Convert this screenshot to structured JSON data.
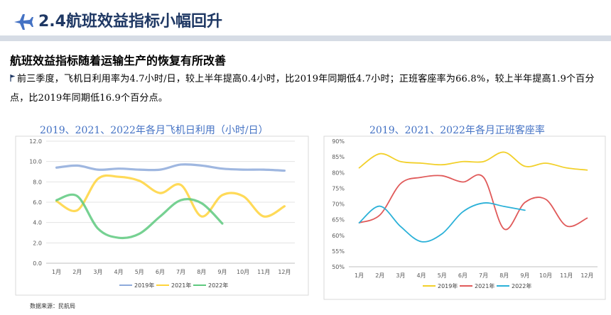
{
  "header": {
    "title": "2.4航班效益指标小幅回升",
    "icon": "airplane-icon"
  },
  "subtitle": "航班效益指标随着运输生产的恢复有所改善",
  "body_text": "前三季度，飞机日利用率为4.7小时/日，较上半年提高0.4小时，比2019年同期低4.7小时；正班客座率为66.8%，较上半年提高1.9个百分点，比2019年同期低16.9个百分点。",
  "source": "数据来源：民航局",
  "colors": {
    "title": "#1f3864",
    "chart_title": "#4472c4",
    "s2019_left": "#8eaadb",
    "s2021_left": "#ffd43b",
    "s2022_left": "#5ec97f",
    "s2019_right": "#f2d02a",
    "s2021_right": "#e05a5a",
    "s2022_right": "#2bb1d8"
  },
  "chart_data": [
    {
      "type": "line",
      "title": "2019、2021、2022年各月飞机日利用（小时/日）",
      "categories": [
        "1月",
        "2月",
        "3月",
        "4月",
        "5月",
        "6月",
        "7月",
        "8月",
        "9月",
        "10月",
        "11月",
        "12月"
      ],
      "ylim": [
        0,
        12
      ],
      "yticks": [
        "0.0",
        "2.0",
        "4.0",
        "6.0",
        "8.0",
        "10.0",
        "12.0"
      ],
      "grid": true,
      "legend": "bottom",
      "series": [
        {
          "name": "2019年",
          "values": [
            9.4,
            9.6,
            9.2,
            9.3,
            9.2,
            9.2,
            9.7,
            9.6,
            9.3,
            9.2,
            9.2,
            9.1
          ]
        },
        {
          "name": "2021年",
          "values": [
            6.1,
            5.2,
            8.3,
            8.5,
            8.1,
            6.9,
            7.7,
            4.6,
            6.7,
            6.6,
            4.6,
            5.6
          ]
        },
        {
          "name": "2022年",
          "values": [
            6.2,
            6.6,
            3.4,
            2.5,
            2.9,
            4.6,
            6.2,
            5.9,
            3.9,
            null,
            null,
            null
          ]
        }
      ]
    },
    {
      "type": "line",
      "title": "2019、2021、2022年各月正班客座率",
      "categories": [
        "1月",
        "2月",
        "3月",
        "4月",
        "5月",
        "6月",
        "7月",
        "8月",
        "9月",
        "10月",
        "11月",
        "12月"
      ],
      "ylim": [
        50,
        90
      ],
      "yticks": [
        "50%",
        "55%",
        "60%",
        "65%",
        "70%",
        "75%",
        "80%",
        "85%",
        "90%"
      ],
      "grid": false,
      "legend": "bottom",
      "series": [
        {
          "name": "2019年",
          "values": [
            81.5,
            86.0,
            83.5,
            83.0,
            82.5,
            83.5,
            83.5,
            86.5,
            82.0,
            83.0,
            81.5,
            80.8
          ]
        },
        {
          "name": "2021年",
          "values": [
            64.0,
            66.5,
            76.5,
            78.5,
            79.0,
            77.0,
            78.5,
            62.0,
            70.5,
            71.5,
            63.0,
            65.5
          ]
        },
        {
          "name": "2022年",
          "values": [
            64.0,
            69.3,
            62.8,
            58.0,
            60.5,
            67.5,
            70.3,
            69.2,
            68.0,
            null,
            null,
            null
          ]
        }
      ]
    }
  ]
}
